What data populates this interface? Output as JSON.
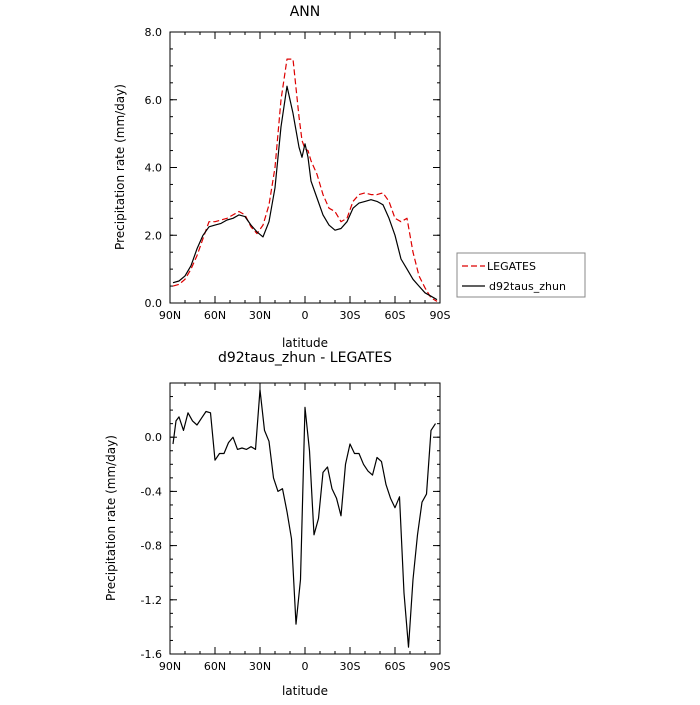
{
  "chart_data": [
    {
      "type": "line",
      "title": "ANN",
      "xlabel": "latitude",
      "ylabel": "Precipitation rate (mm/day)",
      "xlim": [
        90,
        -90
      ],
      "ylim": [
        0,
        8
      ],
      "xticks": [
        90,
        60,
        30,
        0,
        -30,
        -60,
        -90
      ],
      "xticklabels": [
        "90N",
        "60N",
        "30N",
        "0",
        "30S",
        "60S",
        "90S"
      ],
      "yticks": [
        0,
        2,
        4,
        6,
        8
      ],
      "yticklabels": [
        "0.0",
        "2.0",
        "4.0",
        "6.0",
        "8.0"
      ],
      "legend": "right, outside",
      "series": [
        {
          "name": "LEGATES",
          "style": "dashed",
          "color": "#dd0000",
          "x": [
            88,
            84,
            80,
            76,
            72,
            68,
            64,
            60,
            56,
            52,
            48,
            44,
            40,
            36,
            32,
            28,
            24,
            20,
            16,
            12,
            8,
            4,
            2,
            0,
            -2,
            -4,
            -8,
            -12,
            -16,
            -20,
            -24,
            -28,
            -32,
            -36,
            -40,
            -44,
            -48,
            -52,
            -56,
            -60,
            -64,
            -68,
            -72,
            -76,
            -80,
            -84,
            -88
          ],
          "y": [
            0.5,
            0.55,
            0.7,
            1.0,
            1.4,
            1.9,
            2.4,
            2.4,
            2.45,
            2.5,
            2.6,
            2.7,
            2.6,
            2.25,
            2.05,
            2.3,
            2.9,
            4.0,
            6.0,
            7.2,
            7.2,
            5.5,
            4.8,
            4.55,
            4.5,
            4.2,
            3.8,
            3.2,
            2.8,
            2.7,
            2.4,
            2.5,
            3.0,
            3.2,
            3.25,
            3.2,
            3.2,
            3.25,
            3.0,
            2.5,
            2.4,
            2.5,
            1.5,
            0.8,
            0.45,
            0.15,
            0.05
          ]
        },
        {
          "name": "d92taus_zhun",
          "style": "solid",
          "color": "#000000",
          "x": [
            88,
            84,
            80,
            76,
            72,
            68,
            64,
            60,
            56,
            52,
            48,
            44,
            40,
            36,
            32,
            28,
            24,
            20,
            16,
            12,
            8,
            4,
            2,
            0,
            -2,
            -4,
            -8,
            -12,
            -16,
            -20,
            -24,
            -28,
            -32,
            -36,
            -40,
            -44,
            -48,
            -52,
            -56,
            -60,
            -64,
            -68,
            -72,
            -76,
            -80,
            -84,
            -88
          ],
          "y": [
            0.6,
            0.65,
            0.8,
            1.1,
            1.6,
            2.0,
            2.25,
            2.3,
            2.35,
            2.45,
            2.5,
            2.6,
            2.55,
            2.3,
            2.1,
            1.95,
            2.4,
            3.4,
            5.2,
            6.4,
            5.6,
            4.6,
            4.3,
            4.7,
            4.3,
            3.6,
            3.1,
            2.6,
            2.3,
            2.15,
            2.2,
            2.4,
            2.8,
            2.95,
            3.0,
            3.05,
            3.0,
            2.9,
            2.5,
            2.0,
            1.3,
            1.0,
            0.7,
            0.5,
            0.3,
            0.2,
            0.1
          ]
        }
      ]
    },
    {
      "type": "line",
      "title": "d92taus_zhun - LEGATES",
      "xlabel": "latitude",
      "ylabel": "Precipitation rate (mm/day)",
      "xlim": [
        90,
        -90
      ],
      "ylim": [
        -1.6,
        0.4
      ],
      "xticks": [
        90,
        60,
        30,
        0,
        -30,
        -60,
        -90
      ],
      "xticklabels": [
        "90N",
        "60N",
        "30N",
        "0",
        "30S",
        "60S",
        "90S"
      ],
      "yticks": [
        -1.6,
        -1.2,
        -0.8,
        -0.4,
        0.0
      ],
      "yticklabels": [
        "-1.6",
        "-1.2",
        "-0.8",
        "-0.4",
        "0.0"
      ],
      "series": [
        {
          "style": "solid",
          "color": "#000000",
          "x": [
            88,
            86,
            84,
            81,
            78,
            75,
            72,
            69,
            66,
            63,
            60,
            57,
            54,
            51,
            48,
            45,
            42,
            39,
            36,
            33,
            30,
            27,
            24,
            21,
            18,
            15,
            12,
            9,
            6,
            3,
            0,
            -3,
            -6,
            -9,
            -12,
            -15,
            -18,
            -21,
            -24,
            -27,
            -30,
            -33,
            -36,
            -39,
            -42,
            -45,
            -48,
            -51,
            -54,
            -57,
            -60,
            -63,
            -66,
            -69,
            -72,
            -75,
            -78,
            -81,
            -84,
            -87
          ],
          "y": [
            -0.05,
            0.12,
            0.15,
            0.05,
            0.18,
            0.12,
            0.09,
            0.14,
            0.19,
            0.18,
            -0.17,
            -0.12,
            -0.12,
            -0.04,
            0.0,
            -0.09,
            -0.08,
            -0.09,
            -0.07,
            -0.09,
            0.35,
            0.05,
            -0.03,
            -0.3,
            -0.4,
            -0.38,
            -0.55,
            -0.75,
            -1.38,
            -1.05,
            0.22,
            -0.1,
            -0.72,
            -0.6,
            -0.26,
            -0.22,
            -0.38,
            -0.45,
            -0.58,
            -0.2,
            -0.05,
            -0.12,
            -0.12,
            -0.2,
            -0.25,
            -0.28,
            -0.15,
            -0.18,
            -0.35,
            -0.45,
            -0.52,
            -0.44,
            -1.15,
            -1.55,
            -1.05,
            -0.72,
            -0.48,
            -0.42,
            0.05,
            0.1
          ]
        }
      ]
    }
  ]
}
